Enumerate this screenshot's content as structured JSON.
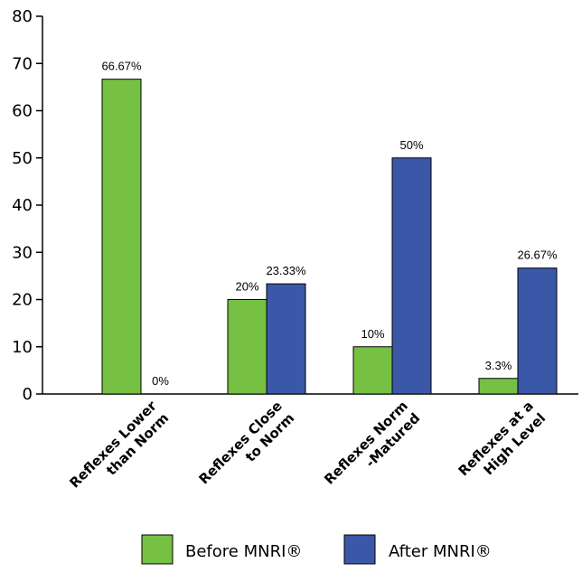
{
  "chart_data": {
    "type": "bar",
    "title": "",
    "xlabel": "",
    "ylabel": "",
    "ylim": [
      0,
      80
    ],
    "yticks": [
      0,
      10,
      20,
      30,
      40,
      50,
      60,
      70,
      80
    ],
    "grid": false,
    "legend_position": "bottom",
    "categories": [
      [
        "Reflexes Lower",
        "than Norm"
      ],
      [
        "Reflexes Close",
        "to Norm"
      ],
      [
        "Reflexes Norm",
        "-Matured"
      ],
      [
        "Reflexes at a",
        "High Level"
      ]
    ],
    "series": [
      {
        "name": "Before MNRI®",
        "color": "#76c043",
        "values": [
          66.67,
          20,
          10,
          3.3
        ],
        "labels": [
          "66.67%",
          "20%",
          "10%",
          "3.3%"
        ]
      },
      {
        "name": "After MNRI®",
        "color": "#3b58a8",
        "values": [
          0,
          23.33,
          50,
          26.67
        ],
        "labels": [
          "0%",
          "23.33%",
          "50%",
          "26.67%"
        ]
      }
    ]
  }
}
